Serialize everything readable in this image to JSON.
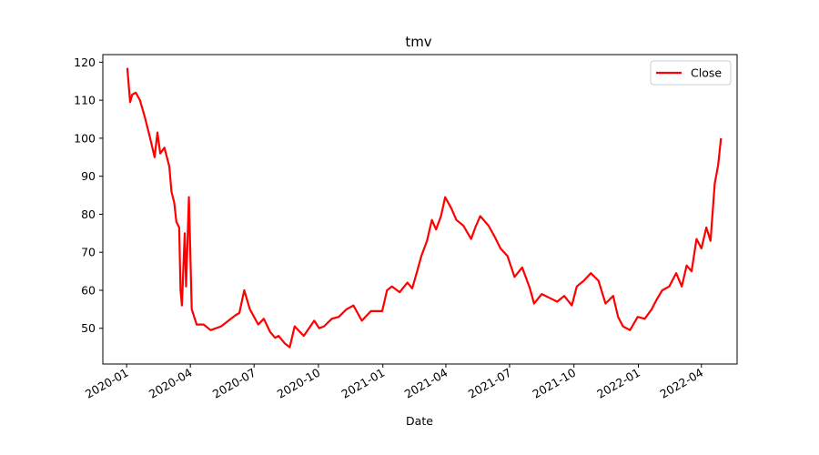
{
  "chart_data": {
    "type": "line",
    "title": "tmv",
    "xlabel": "Date",
    "ylabel": "",
    "xlim": [
      "2019-11-28",
      "2022-05-22"
    ],
    "ylim": [
      40.6,
      122.0
    ],
    "yticks": [
      50,
      60,
      70,
      80,
      90,
      100,
      110,
      120
    ],
    "xticks": [
      "2020-01",
      "2020-04",
      "2020-07",
      "2020-10",
      "2021-01",
      "2021-04",
      "2021-07",
      "2021-10",
      "2022-01",
      "2022-04"
    ],
    "grid": false,
    "legend_position": "top-right",
    "series": [
      {
        "name": "Close",
        "color": "#ff0000",
        "x": [
          "2020-01-02",
          "2020-01-06",
          "2020-01-09",
          "2020-01-14",
          "2020-01-20",
          "2020-01-27",
          "2020-02-03",
          "2020-02-10",
          "2020-02-14",
          "2020-02-18",
          "2020-02-24",
          "2020-03-02",
          "2020-03-05",
          "2020-03-09",
          "2020-03-12",
          "2020-03-16",
          "2020-03-18",
          "2020-03-20",
          "2020-03-24",
          "2020-03-26",
          "2020-03-30",
          "2020-04-03",
          "2020-04-10",
          "2020-04-20",
          "2020-04-30",
          "2020-05-15",
          "2020-05-29",
          "2020-06-05",
          "2020-06-10",
          "2020-06-17",
          "2020-06-25",
          "2020-07-07",
          "2020-07-15",
          "2020-07-24",
          "2020-07-31",
          "2020-08-05",
          "2020-08-14",
          "2020-08-21",
          "2020-08-28",
          "2020-09-10",
          "2020-09-25",
          "2020-10-02",
          "2020-10-09",
          "2020-10-20",
          "2020-10-30",
          "2020-11-10",
          "2020-11-20",
          "2020-12-02",
          "2020-12-15",
          "2020-12-31",
          "2021-01-07",
          "2021-01-14",
          "2021-01-25",
          "2021-02-05",
          "2021-02-12",
          "2021-02-19",
          "2021-02-25",
          "2021-03-05",
          "2021-03-12",
          "2021-03-18",
          "2021-03-25",
          "2021-03-31",
          "2021-04-09",
          "2021-04-16",
          "2021-04-26",
          "2021-05-07",
          "2021-05-13",
          "2021-05-20",
          "2021-06-01",
          "2021-06-10",
          "2021-06-18",
          "2021-06-28",
          "2021-07-08",
          "2021-07-19",
          "2021-07-30",
          "2021-08-05",
          "2021-08-16",
          "2021-08-27",
          "2021-09-07",
          "2021-09-17",
          "2021-09-28",
          "2021-10-05",
          "2021-10-15",
          "2021-10-25",
          "2021-11-05",
          "2021-11-15",
          "2021-11-26",
          "2021-12-03",
          "2021-12-10",
          "2021-12-20",
          "2021-12-31",
          "2022-01-10",
          "2022-01-20",
          "2022-01-27",
          "2022-02-04",
          "2022-02-14",
          "2022-02-24",
          "2022-03-04",
          "2022-03-11",
          "2022-03-18",
          "2022-03-25",
          "2022-04-01",
          "2022-04-08",
          "2022-04-14",
          "2022-04-20",
          "2022-04-25",
          "2022-04-29"
        ],
        "y": [
          118.5,
          109.5,
          111.5,
          112.0,
          110.0,
          105.5,
          100.5,
          95.0,
          101.5,
          96.0,
          97.5,
          92.5,
          86.0,
          83.0,
          78.0,
          76.5,
          60.0,
          56.0,
          75.0,
          61.0,
          84.5,
          55.0,
          51.0,
          51.0,
          49.5,
          50.5,
          52.5,
          53.5,
          54.0,
          60.0,
          55.0,
          51.0,
          52.5,
          49.0,
          47.5,
          48.0,
          46.0,
          45.0,
          50.5,
          48.0,
          52.0,
          50.0,
          50.5,
          52.5,
          53.0,
          55.0,
          56.0,
          52.0,
          54.5,
          54.5,
          60.0,
          61.0,
          59.5,
          62.0,
          60.5,
          65.0,
          69.0,
          73.0,
          78.5,
          76.0,
          79.5,
          84.5,
          81.5,
          78.5,
          77.0,
          73.5,
          76.5,
          79.5,
          77.0,
          74.0,
          71.0,
          69.0,
          63.5,
          66.0,
          60.5,
          56.5,
          59.0,
          58.0,
          57.0,
          58.5,
          56.0,
          61.0,
          62.5,
          64.5,
          62.5,
          56.5,
          58.5,
          53.0,
          50.5,
          49.5,
          53.0,
          52.5,
          55.0,
          57.5,
          60.0,
          61.0,
          64.5,
          61.0,
          66.5,
          65.0,
          73.5,
          71.0,
          76.5,
          73.0,
          88.0,
          93.0,
          100.0
        ]
      }
    ]
  }
}
